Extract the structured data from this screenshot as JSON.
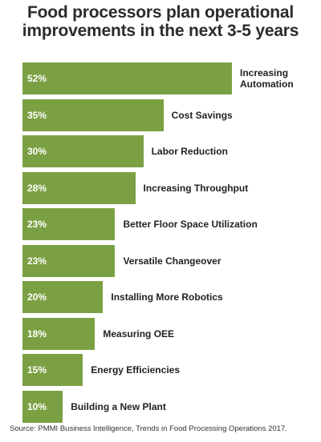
{
  "chart_data": {
    "type": "bar",
    "orientation": "horizontal",
    "title_line1": "Food processors plan operational",
    "title_line2": "improvements in the next 3-5 years",
    "categories": [
      "Increasing Automation",
      "Cost Savings",
      "Labor Reduction",
      "Increasing Throughput",
      "Better Floor Space Utilization",
      "Versatile Changeover",
      "Installing More Robotics",
      "Measuring OEE",
      "Energy Efficiencies",
      "Building a New Plant"
    ],
    "values": [
      52,
      35,
      30,
      28,
      23,
      23,
      20,
      18,
      15,
      10
    ],
    "value_labels": [
      "52%",
      "35%",
      "30%",
      "28%",
      "23%",
      "23%",
      "20%",
      "18%",
      "15%",
      "10%"
    ],
    "unit": "%",
    "bar_color": "#7ba043",
    "grid": false,
    "legend": "none"
  },
  "source": "Source: PMMI Business Intelligence, Trends in Food Processing Operations 2017."
}
